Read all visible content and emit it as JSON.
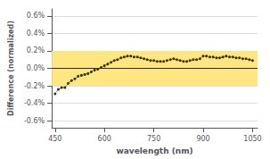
{
  "chart_data": {
    "type": "line",
    "xlabel": "wavelength (nm)",
    "ylabel": "Difference (normalized)",
    "x": [
      450,
      460,
      470,
      480,
      490,
      500,
      510,
      520,
      530,
      540,
      550,
      560,
      570,
      580,
      590,
      600,
      610,
      620,
      630,
      640,
      650,
      660,
      670,
      680,
      690,
      700,
      710,
      720,
      730,
      740,
      750,
      760,
      770,
      780,
      790,
      800,
      810,
      820,
      830,
      840,
      850,
      860,
      870,
      880,
      890,
      900,
      910,
      920,
      930,
      940,
      950,
      960,
      970,
      980,
      990,
      1000,
      1010,
      1020,
      1030,
      1040,
      1050
    ],
    "values": [
      -0.29,
      -0.24,
      -0.22,
      -0.22,
      -0.17,
      -0.14,
      -0.12,
      -0.09,
      -0.08,
      -0.07,
      -0.06,
      -0.04,
      -0.02,
      -0.01,
      0.01,
      0.03,
      0.05,
      0.07,
      0.09,
      0.1,
      0.12,
      0.13,
      0.14,
      0.14,
      0.13,
      0.13,
      0.12,
      0.11,
      0.1,
      0.09,
      0.09,
      0.08,
      0.08,
      0.08,
      0.09,
      0.1,
      0.11,
      0.1,
      0.09,
      0.08,
      0.08,
      0.09,
      0.1,
      0.1,
      0.11,
      0.14,
      0.14,
      0.13,
      0.13,
      0.12,
      0.12,
      0.13,
      0.14,
      0.13,
      0.13,
      0.12,
      0.12,
      0.11,
      0.11,
      0.1,
      0.09
    ],
    "color": "#3D3000",
    "marker": "circle",
    "line_style": "dotted",
    "xlim": [
      440,
      1065
    ],
    "xticks": [
      450,
      600,
      750,
      900,
      1050
    ],
    "ylim": [
      -0.68,
      0.68
    ],
    "yticks": [
      {
        "value": -0.6,
        "label": "-0.6%"
      },
      {
        "value": -0.4,
        "label": "-0.4%"
      },
      {
        "value": -0.2,
        "label": "-0.2%"
      },
      {
        "value": 0.0,
        "label": "0.0%"
      },
      {
        "value": 0.2,
        "label": "0.2%"
      },
      {
        "value": 0.4,
        "label": "0.4%"
      },
      {
        "value": 0.6,
        "label": "0.6%"
      }
    ],
    "band": {
      "ymin": -0.2,
      "ymax": 0.2,
      "color": "#FFE680"
    },
    "hline": {
      "y": 0.0,
      "color": "#2C2C2C"
    },
    "grid": "y"
  }
}
